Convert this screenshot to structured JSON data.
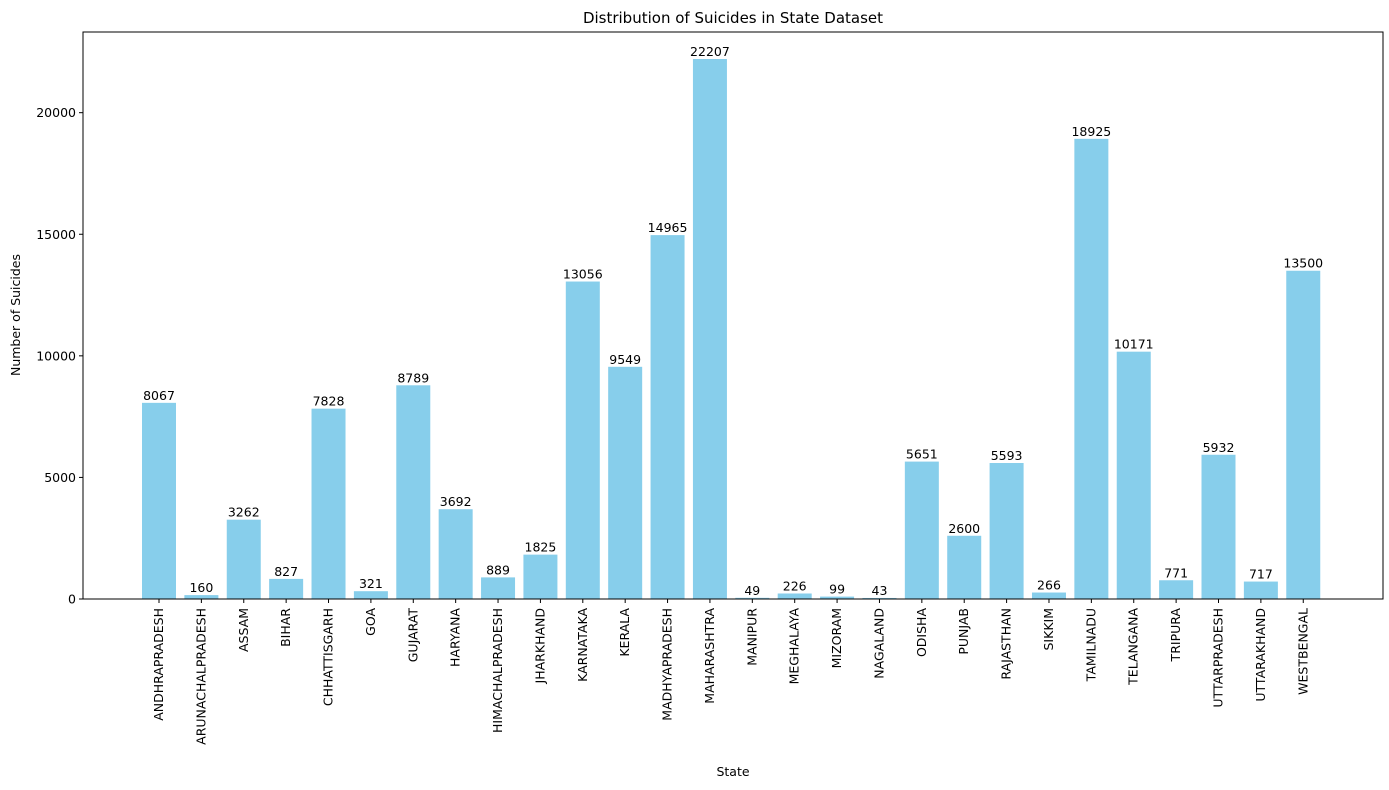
{
  "chart_data": {
    "type": "bar",
    "title": "Distribution of Suicides in State Dataset",
    "xlabel": "State",
    "ylabel": "Number of Suicides",
    "ylim": [
      0,
      23318
    ],
    "yticks": [
      0,
      5000,
      10000,
      15000,
      20000
    ],
    "grid": false,
    "bar_color": "#87CEEB",
    "categories": [
      "ANDHRAPRADESH",
      "ARUNACHALPRADESH",
      "ASSAM",
      "BIHAR",
      "CHHATTISGARH",
      "GOA",
      "GUJARAT",
      "HARYANA",
      "HIMACHALPRADESH",
      "JHARKHAND",
      "KARNATAKA",
      "KERALA",
      "MADHYAPRADESH",
      "MAHARASHTRA",
      "MANIPUR",
      "MEGHALAYA",
      "MIZORAM",
      "NAGALAND",
      "ODISHA",
      "PUNJAB",
      "RAJASTHAN",
      "SIKKIM",
      "TAMILNADU",
      "TELANGANA",
      "TRIPURA",
      "UTTARPRADESH",
      "UTTARAKHAND",
      "WESTBENGAL"
    ],
    "values": [
      8067,
      160,
      3262,
      827,
      7828,
      321,
      8789,
      3692,
      889,
      1825,
      13056,
      9549,
      14965,
      22207,
      49,
      226,
      99,
      43,
      5651,
      2600,
      5593,
      266,
      18925,
      10171,
      771,
      5932,
      717,
      13500
    ]
  }
}
